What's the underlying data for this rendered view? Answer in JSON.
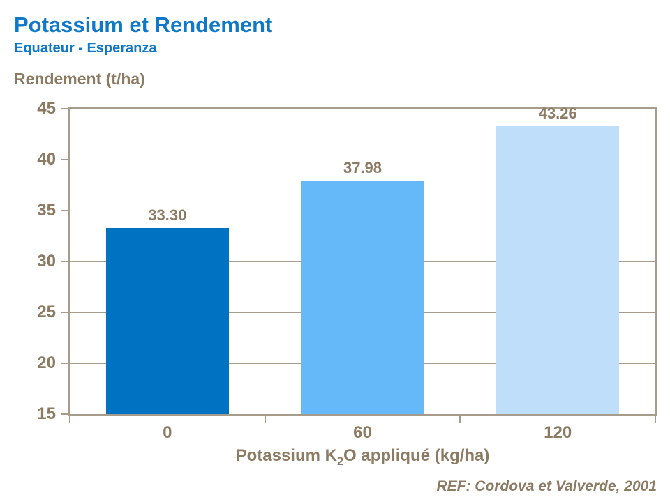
{
  "colors": {
    "background": "#FFFFFF",
    "title_blue": "#0F78C8",
    "text_brown": "#8C7A63",
    "axis_line": "#A79B8B"
  },
  "header": {
    "title": "Potassium et Rendement",
    "subtitle": "Equateur - Esperanza"
  },
  "footer": {
    "reference": "REF: Cordova et Valverde, 2001"
  },
  "chart_data": {
    "type": "bar",
    "title": "Potassium et Rendement",
    "subtitle": "Equateur - Esperanza",
    "ylabel": "Rendement (t/ha)",
    "xlabel_plain": "Potassium K2O appliqué (kg/ha)",
    "xlabel_prefix": "Potassium K",
    "xlabel_sub": "2",
    "xlabel_suffix": "O appliqué (kg/ha)",
    "categories": [
      "0",
      "60",
      "120"
    ],
    "values": [
      33.3,
      37.98,
      43.26
    ],
    "value_labels": [
      "33.30",
      "37.98",
      "43.26"
    ],
    "bar_colors": [
      "#0072C2",
      "#66B9F8",
      "#BEDEF9"
    ],
    "ylim": [
      15,
      45
    ],
    "yticks": [
      15,
      20,
      25,
      30,
      35,
      40,
      45
    ],
    "grid": true,
    "legend_position": "none",
    "source": "REF: Cordova et Valverde, 2001"
  }
}
